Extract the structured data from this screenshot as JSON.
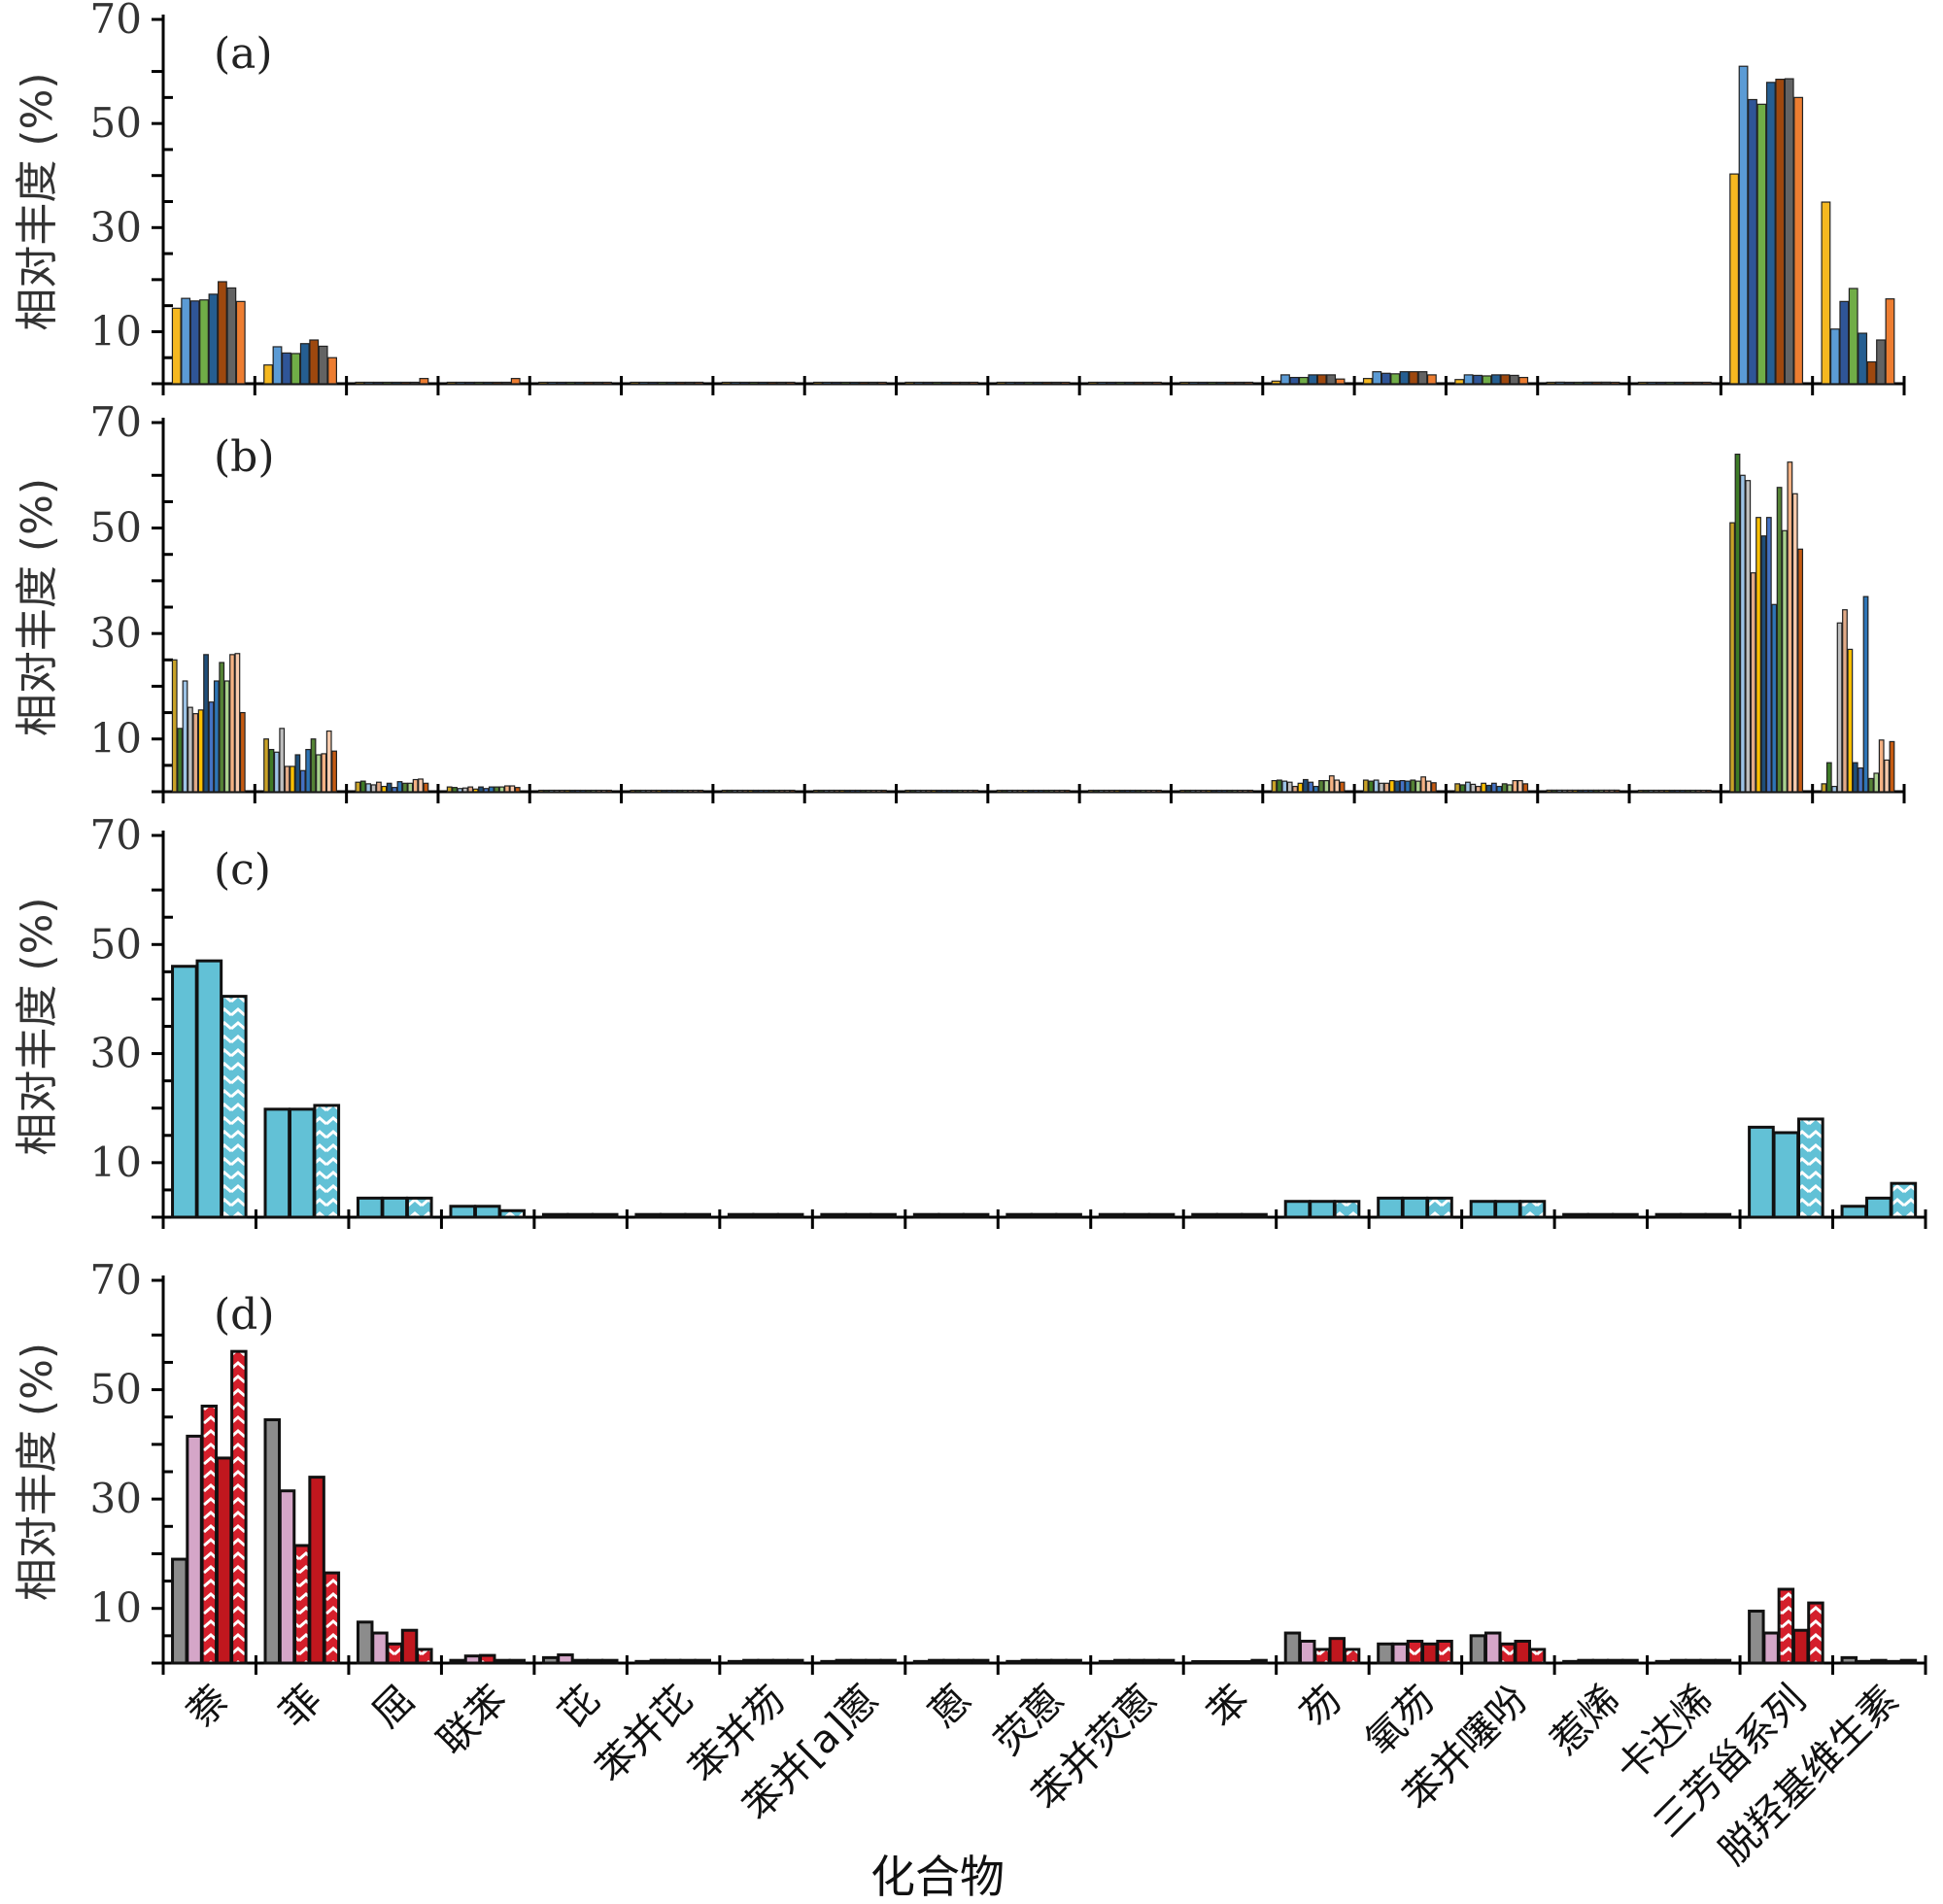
{
  "chart_data": {
    "type": "bar",
    "xlabel": "化合物",
    "ylabel": "相对丰度 (%)",
    "yticks": [
      10,
      30,
      50,
      70
    ],
    "ylim": [
      0,
      70
    ],
    "categories": [
      "萘",
      "菲",
      "屈",
      "联苯",
      "芘",
      "苯并芘",
      "苯并芴",
      "苯并[a]蒽",
      "蒽",
      "荧蒽",
      "苯并荧蒽",
      "苯",
      "芴",
      "氧芴",
      "苯并噻吩",
      "惹烯",
      "卡达烯",
      "三芳甾系列",
      "脱羟基维生素"
    ],
    "panels": [
      {
        "tag": "(a)",
        "colors": [
          "#F5B820",
          "#5B9BD5",
          "#2F5597",
          "#70AD47",
          "#255E91",
          "#9E480E",
          "#636363",
          "#ED7D31"
        ],
        "values": [
          [
            14.5,
            16.4,
            15.9,
            16.1,
            17.2,
            19.6,
            18.4,
            15.8
          ],
          [
            3.6,
            7.1,
            5.9,
            5.8,
            7.7,
            8.4,
            7.2,
            5.0
          ],
          [
            0.1,
            0.1,
            0.1,
            0.1,
            0.1,
            0.1,
            0.1,
            1.0
          ],
          [
            0.1,
            0.1,
            0.1,
            0.1,
            0.1,
            0.1,
            0.1,
            1.0
          ],
          [
            0.1,
            0.1,
            0.1,
            0.1,
            0.1,
            0.1,
            0.1,
            0.1
          ],
          [
            0.1,
            0.1,
            0.1,
            0.1,
            0.1,
            0.1,
            0.1,
            0.1
          ],
          [
            0.1,
            0.1,
            0.1,
            0.1,
            0.1,
            0.1,
            0.1,
            0.1
          ],
          [
            0.1,
            0.1,
            0.1,
            0.1,
            0.1,
            0.1,
            0.1,
            0.1
          ],
          [
            0.1,
            0.1,
            0.1,
            0.1,
            0.1,
            0.1,
            0.1,
            0.1
          ],
          [
            0.1,
            0.1,
            0.1,
            0.1,
            0.1,
            0.1,
            0.1,
            0.1
          ],
          [
            0.1,
            0.1,
            0.1,
            0.1,
            0.1,
            0.1,
            0.1,
            0.1
          ],
          [
            0.1,
            0.1,
            0.1,
            0.1,
            0.1,
            0.1,
            0.1,
            0.1
          ],
          [
            0.5,
            1.7,
            1.2,
            1.2,
            1.7,
            1.7,
            1.7,
            0.9
          ],
          [
            1.0,
            2.3,
            2.0,
            1.9,
            2.3,
            2.3,
            2.3,
            1.7
          ],
          [
            0.8,
            1.7,
            1.6,
            1.5,
            1.7,
            1.7,
            1.6,
            1.2
          ],
          [
            0.2,
            0.3,
            0.2,
            0.2,
            0.3,
            0.3,
            0.3,
            0.2
          ],
          [
            0.1,
            0.1,
            0.1,
            0.1,
            0.1,
            0.1,
            0.1,
            0.1
          ],
          [
            40.3,
            61.0,
            54.6,
            53.7,
            57.9,
            58.5,
            58.6,
            55.0
          ],
          [
            34.9,
            10.5,
            15.8,
            18.3,
            9.7,
            4.2,
            8.4,
            16.3
          ]
        ]
      },
      {
        "tag": "(b)",
        "colors": [
          "#C9A227",
          "#3E7B27",
          "#9DC3E6",
          "#BFBFBF",
          "#E2AA87",
          "#FFC000",
          "#1F4E79",
          "#4472C4",
          "#2E75B6",
          "#548235",
          "#A9D18E",
          "#F4B183",
          "#F8CBAD",
          "#C55A11"
        ],
        "values": [
          [
            25.0,
            12.0,
            21.0,
            16.0,
            14.8,
            15.5,
            26.0,
            17.0,
            21.0,
            24.5,
            21.0,
            26.0,
            26.2,
            15.0
          ],
          [
            10.0,
            8.0,
            7.5,
            12.0,
            4.8,
            4.8,
            7.0,
            4.0,
            8.0,
            10.0,
            7.0,
            7.2,
            11.5,
            7.7
          ],
          [
            1.8,
            2.0,
            1.5,
            1.3,
            1.8,
            1.0,
            1.6,
            0.8,
            1.9,
            1.6,
            1.6,
            2.3,
            2.4,
            1.6
          ],
          [
            0.9,
            0.8,
            0.6,
            0.7,
            0.9,
            0.5,
            0.9,
            0.6,
            0.9,
            0.9,
            0.9,
            1.1,
            1.1,
            0.8
          ],
          [
            0.1,
            0.1,
            0.1,
            0.1,
            0.1,
            0.1,
            0.1,
            0.1,
            0.1,
            0.1,
            0.1,
            0.1,
            0.1,
            0.1
          ],
          [
            0.1,
            0.1,
            0.1,
            0.1,
            0.1,
            0.1,
            0.1,
            0.1,
            0.1,
            0.1,
            0.1,
            0.1,
            0.1,
            0.1
          ],
          [
            0.1,
            0.1,
            0.1,
            0.1,
            0.1,
            0.1,
            0.1,
            0.1,
            0.1,
            0.1,
            0.1,
            0.1,
            0.1,
            0.1
          ],
          [
            0.1,
            0.1,
            0.1,
            0.1,
            0.1,
            0.1,
            0.1,
            0.1,
            0.1,
            0.1,
            0.1,
            0.1,
            0.1,
            0.1
          ],
          [
            0.1,
            0.1,
            0.1,
            0.1,
            0.1,
            0.1,
            0.1,
            0.1,
            0.1,
            0.1,
            0.1,
            0.1,
            0.1,
            0.1
          ],
          [
            0.1,
            0.1,
            0.1,
            0.1,
            0.1,
            0.1,
            0.1,
            0.1,
            0.1,
            0.1,
            0.1,
            0.1,
            0.1,
            0.1
          ],
          [
            0.1,
            0.1,
            0.1,
            0.1,
            0.1,
            0.1,
            0.1,
            0.1,
            0.1,
            0.1,
            0.1,
            0.1,
            0.1,
            0.1
          ],
          [
            0.1,
            0.1,
            0.1,
            0.1,
            0.1,
            0.1,
            0.1,
            0.1,
            0.1,
            0.1,
            0.1,
            0.1,
            0.1,
            0.1
          ],
          [
            2.1,
            2.2,
            2.0,
            1.8,
            1.0,
            1.6,
            2.3,
            1.8,
            1.0,
            2.1,
            2.1,
            3.0,
            2.2,
            1.8
          ],
          [
            2.2,
            2.0,
            2.2,
            1.6,
            1.6,
            2.1,
            2.0,
            2.1,
            2.0,
            2.2,
            2.0,
            2.8,
            2.0,
            1.7
          ],
          [
            1.5,
            1.3,
            1.8,
            1.4,
            1.0,
            1.6,
            1.2,
            1.6,
            1.0,
            1.5,
            1.3,
            2.1,
            2.1,
            1.5
          ],
          [
            0.3,
            0.3,
            0.3,
            0.3,
            0.3,
            0.3,
            0.3,
            0.3,
            0.3,
            0.3,
            0.3,
            0.3,
            0.3,
            0.3
          ],
          [
            0.1,
            0.1,
            0.1,
            0.1,
            0.1,
            0.1,
            0.1,
            0.1,
            0.1,
            0.1,
            0.1,
            0.1,
            0.1,
            0.1
          ],
          [
            51.0,
            64.0,
            60.0,
            59.0,
            41.5,
            52.0,
            48.5,
            52.0,
            35.5,
            57.7,
            49.5,
            62.5,
            56.5,
            46.0
          ],
          [
            1.5,
            5.5,
            1.0,
            32.0,
            34.5,
            27.0,
            5.5,
            4.5,
            37.0,
            2.5,
            3.5,
            9.8,
            6.0,
            9.5
          ]
        ]
      },
      {
        "tag": "(c)",
        "colors": [
          "#62C1D6"
        ],
        "patterns": [
          "solid",
          "solid",
          "chevron"
        ],
        "values": [
          [
            46.0,
            47.0,
            40.5
          ],
          [
            19.8,
            19.8,
            20.5
          ],
          [
            3.5,
            3.5,
            3.5
          ],
          [
            2.0,
            2.0,
            1.2
          ],
          [
            0.5,
            0.5,
            0.5
          ],
          [
            0.5,
            0.5,
            0.5
          ],
          [
            0.5,
            0.5,
            0.5
          ],
          [
            0.5,
            0.5,
            0.5
          ],
          [
            0.5,
            0.5,
            0.5
          ],
          [
            0.5,
            0.5,
            0.5
          ],
          [
            0.5,
            0.5,
            0.5
          ],
          [
            0.5,
            0.5,
            0.5
          ],
          [
            2.9,
            2.9,
            2.9
          ],
          [
            3.5,
            3.5,
            3.5
          ],
          [
            2.9,
            2.9,
            2.9
          ],
          [
            0.5,
            0.5,
            0.5
          ],
          [
            0.5,
            0.5,
            0.5
          ],
          [
            16.5,
            15.5,
            18.0
          ],
          [
            2.0,
            3.5,
            6.2
          ]
        ]
      },
      {
        "tag": "(d)",
        "colors": [
          "#8C8C8C",
          "#D5A6C8",
          "#D41F2B",
          "#C0171E",
          "#D41F2B"
        ],
        "patterns": [
          "solid",
          "solid",
          "zigzag",
          "solid",
          "zigzag"
        ],
        "values": [
          [
            19.0,
            41.5,
            47.0,
            37.5,
            57.0
          ],
          [
            44.5,
            31.5,
            21.5,
            34.0,
            16.5
          ],
          [
            7.5,
            5.5,
            3.5,
            6.0,
            2.5
          ],
          [
            0.5,
            1.3,
            1.4,
            0.5,
            0.5
          ],
          [
            1.0,
            1.5,
            0.5,
            0.5,
            0.5
          ],
          [
            0.3,
            0.5,
            0.5,
            0.5,
            0.5
          ],
          [
            0.3,
            0.5,
            0.5,
            0.5,
            0.5
          ],
          [
            0.3,
            0.5,
            0.5,
            0.5,
            0.5
          ],
          [
            0.3,
            0.5,
            0.5,
            0.5,
            0.5
          ],
          [
            0.3,
            0.5,
            0.5,
            0.5,
            0.5
          ],
          [
            0.3,
            0.5,
            0.5,
            0.5,
            0.5
          ],
          [
            0.0,
            0.0,
            0.0,
            0.0,
            0.5
          ],
          [
            5.5,
            4.0,
            2.5,
            4.5,
            2.5
          ],
          [
            3.5,
            3.5,
            4.0,
            3.5,
            4.0
          ],
          [
            5.0,
            5.5,
            3.5,
            4.0,
            2.5
          ],
          [
            0.3,
            0.5,
            0.5,
            0.5,
            0.5
          ],
          [
            0.3,
            0.5,
            0.5,
            0.5,
            0.5
          ],
          [
            9.5,
            5.5,
            13.5,
            6.0,
            11.0
          ],
          [
            1.0,
            0.3,
            0.5,
            0.3,
            0.5
          ]
        ]
      }
    ]
  }
}
